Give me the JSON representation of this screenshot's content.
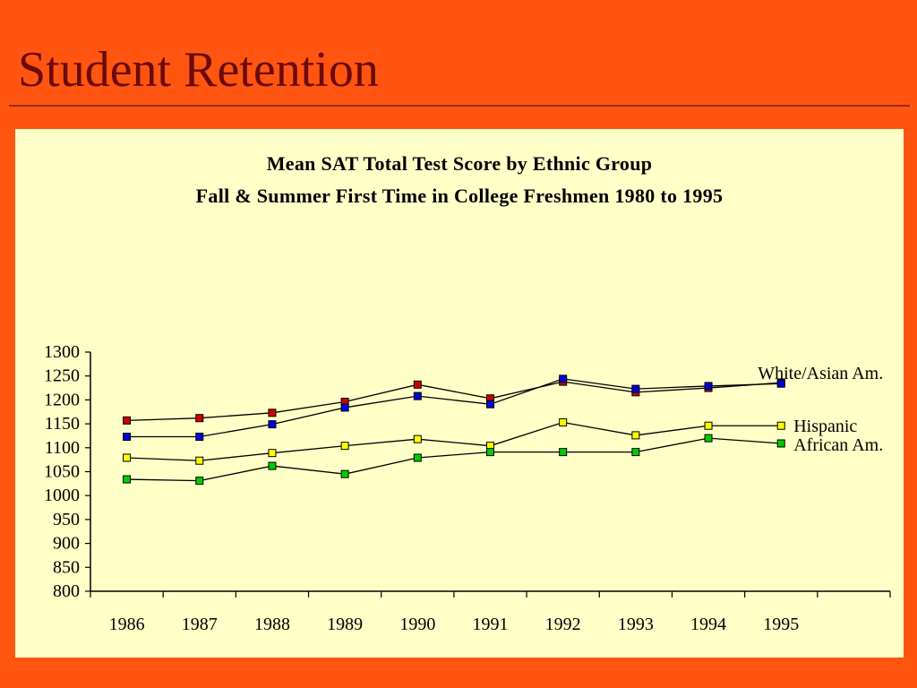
{
  "slide": {
    "title": "Student Retention"
  },
  "chart_data": {
    "type": "line",
    "title": "Mean SAT Total Test Score by Ethnic Group",
    "subtitle": "Fall & Summer First Time in College Freshmen 1980 to 1995",
    "xlabel": "",
    "ylabel": "",
    "categories": [
      "1986",
      "1987",
      "1988",
      "1989",
      "1990",
      "1991",
      "1992",
      "1993",
      "1994",
      "1995"
    ],
    "ylim": [
      800,
      1300
    ],
    "yticks": [
      1300,
      1250,
      1200,
      1150,
      1100,
      1050,
      1000,
      950,
      900,
      850,
      800
    ],
    "grid": false,
    "series": [
      {
        "name": "White/Asian Am.",
        "values": [
          1157,
          1162,
          1173,
          1196,
          1232,
          1203,
          1238,
          1216,
          1225,
          1236
        ],
        "marker": "#CC0000"
      },
      {
        "name": "",
        "values": [
          1123,
          1123,
          1149,
          1184,
          1208,
          1191,
          1244,
          1223,
          1229,
          1234
        ],
        "marker": "#0000DD"
      },
      {
        "name": "Hispanic",
        "values": [
          1079,
          1073,
          1089,
          1104,
          1118,
          1104,
          1153,
          1126,
          1146,
          1146
        ],
        "marker": "#FFFF00"
      },
      {
        "name": "African Am.",
        "values": [
          1034,
          1031,
          1062,
          1045,
          1079,
          1091,
          1091,
          1091,
          1120,
          1109
        ],
        "marker": "#00CC00"
      }
    ],
    "colors": {
      "line": "#000000",
      "panel": "#FFFFC8",
      "background": "#FF5511",
      "title_text": "#6B0A0A"
    }
  }
}
